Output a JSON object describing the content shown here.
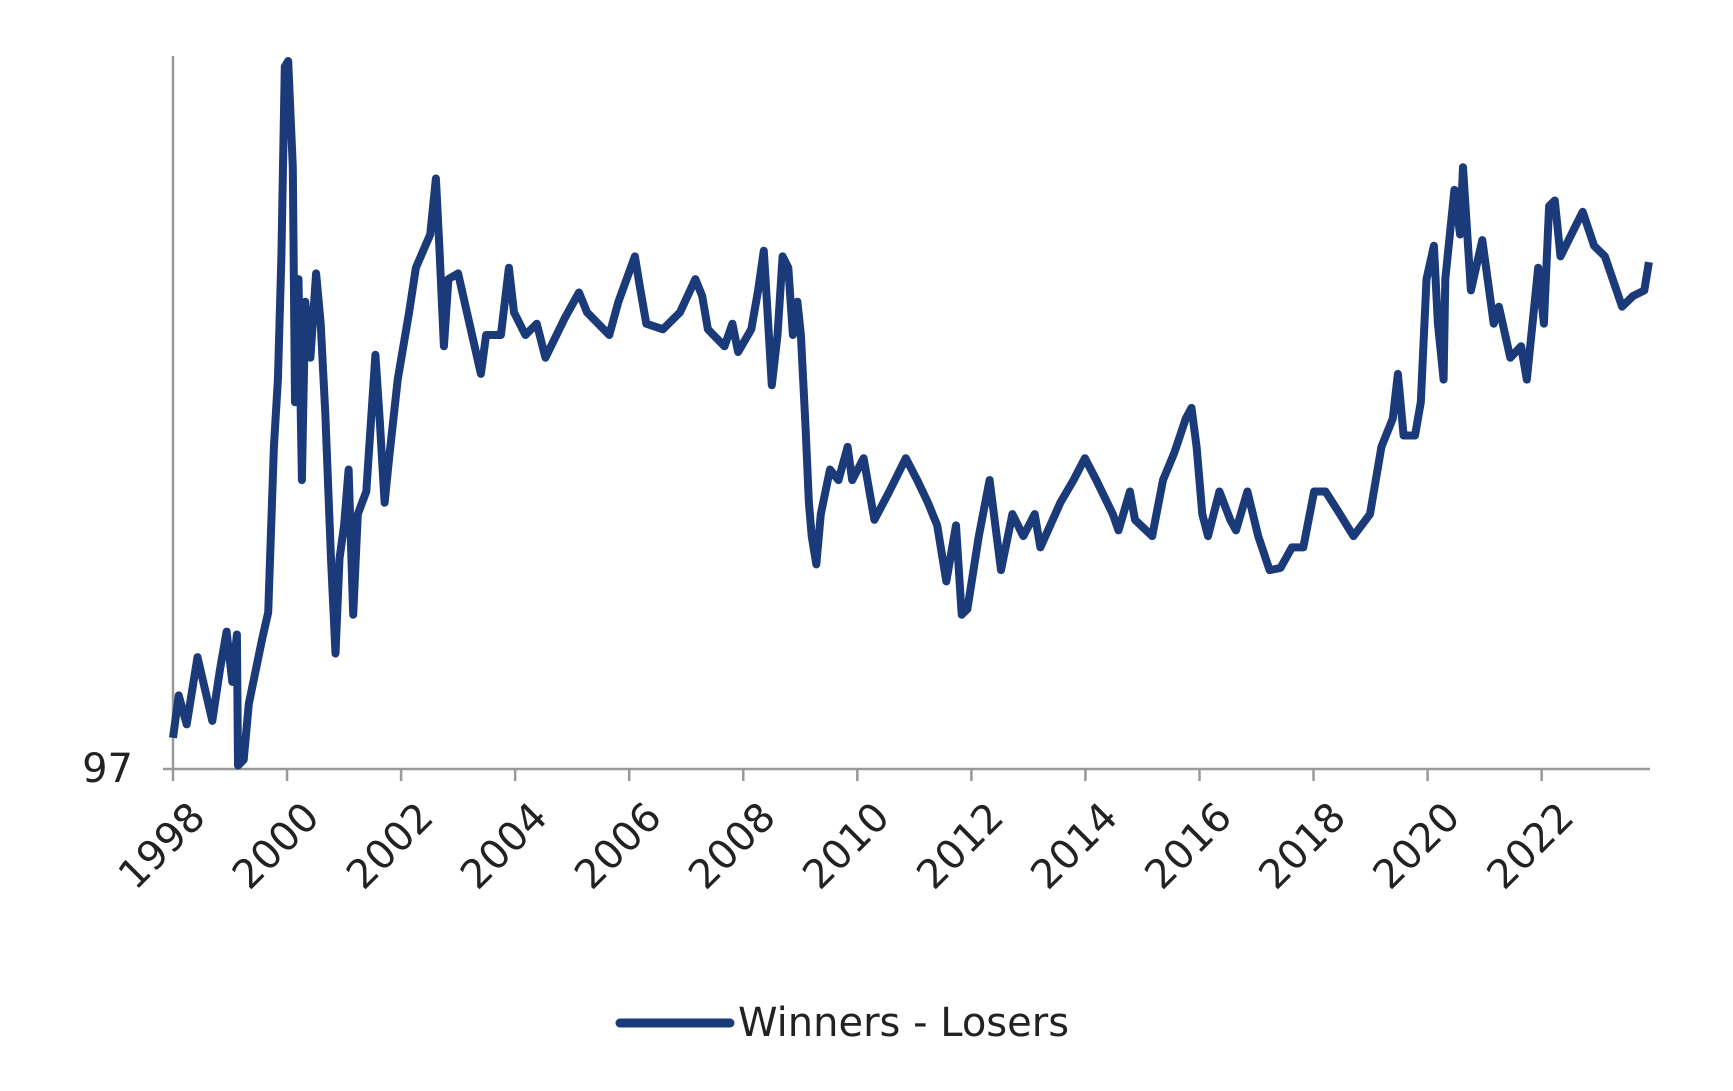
{
  "chart_data": {
    "type": "line",
    "xlim": [
      1998,
      2023.9
    ],
    "xticks": [
      1998,
      2000,
      2002,
      2004,
      2006,
      2008,
      2010,
      2012,
      2014,
      2016,
      2018,
      2020,
      2022
    ],
    "ylim": [
      97,
      107
    ],
    "yticks": [
      97
    ],
    "legend": "bottom",
    "series": [
      {
        "name": "Winners - Losers",
        "color": "#1b3a7a",
        "x": [
          1998.0,
          1998.1,
          1998.24,
          1998.43,
          1998.69,
          1998.82,
          1998.94,
          1999.04,
          1999.12,
          1999.14,
          1999.24,
          1999.33,
          1999.57,
          1999.67,
          1999.77,
          1999.84,
          1999.9,
          1999.96,
          2000.02,
          2000.1,
          2000.14,
          2000.2,
          2000.26,
          2000.32,
          2000.41,
          2000.51,
          2000.59,
          2000.67,
          2000.77,
          2000.85,
          2000.92,
          2001.0,
          2001.08,
          2001.16,
          2001.24,
          2001.39,
          2001.55,
          2001.63,
          2001.71,
          2001.79,
          2001.94,
          2002.14,
          2002.26,
          2002.51,
          2002.61,
          2002.67,
          2002.75,
          2002.83,
          2003.0,
          2003.2,
          2003.4,
          2003.49,
          2003.75,
          2003.89,
          2003.98,
          2004.18,
          2004.38,
          2004.53,
          2004.87,
          2005.12,
          2005.26,
          2005.65,
          2005.81,
          2006.1,
          2006.18,
          2006.3,
          2006.59,
          2006.89,
          2007.16,
          2007.28,
          2007.38,
          2007.67,
          2007.81,
          2007.91,
          2008.14,
          2008.26,
          2008.36,
          2008.42,
          2008.5,
          2008.6,
          2008.69,
          2008.79,
          2008.87,
          2008.95,
          2009.01,
          2009.09,
          2009.15,
          2009.2,
          2009.28,
          2009.36,
          2009.52,
          2009.67,
          2009.83,
          2009.91,
          2010.11,
          2010.3,
          2010.56,
          2010.85,
          2011.05,
          2011.24,
          2011.4,
          2011.56,
          2011.73,
          2011.83,
          2011.93,
          2012.13,
          2012.32,
          2012.52,
          2012.72,
          2012.91,
          2013.11,
          2013.21,
          2013.56,
          2013.79,
          2013.99,
          2014.19,
          2014.48,
          2014.58,
          2014.78,
          2014.87,
          2015.17,
          2015.36,
          2015.56,
          2015.76,
          2015.86,
          2015.95,
          2016.05,
          2016.15,
          2016.35,
          2016.54,
          2016.64,
          2016.84,
          2017.03,
          2017.23,
          2017.42,
          2017.62,
          2017.82,
          2018.01,
          2018.21,
          2018.4,
          2018.7,
          2018.99,
          2019.19,
          2019.39,
          2019.48,
          2019.58,
          2019.78,
          2019.88,
          2019.98,
          2020.11,
          2020.18,
          2020.28,
          2020.31,
          2020.47,
          2020.57,
          2020.62,
          2020.76,
          2020.96,
          2021.16,
          2021.25,
          2021.45,
          2021.64,
          2021.74,
          2021.94,
          2022.04,
          2022.13,
          2022.23,
          2022.33,
          2022.62,
          2022.72,
          2022.92,
          2023.11,
          2023.41,
          2023.6,
          2023.8,
          2023.88
        ],
        "values": [
          97.44,
          98.04,
          97.63,
          98.58,
          97.68,
          98.39,
          98.94,
          98.23,
          98.9,
          97.05,
          97.13,
          97.92,
          98.86,
          99.21,
          101.55,
          102.5,
          104.24,
          106.92,
          107.0,
          105.5,
          102.18,
          103.92,
          101.08,
          103.6,
          102.81,
          104.0,
          103.29,
          102.02,
          99.97,
          98.63,
          99.97,
          100.44,
          101.23,
          99.18,
          100.6,
          100.92,
          102.85,
          101.87,
          100.76,
          101.39,
          102.5,
          103.45,
          104.08,
          104.55,
          105.34,
          104.39,
          102.97,
          103.92,
          104.0,
          103.29,
          102.58,
          103.13,
          103.13,
          104.08,
          103.45,
          103.13,
          103.29,
          102.81,
          103.37,
          103.73,
          103.45,
          103.13,
          103.6,
          104.24,
          103.84,
          103.29,
          103.21,
          103.45,
          103.92,
          103.68,
          103.21,
          102.97,
          103.29,
          102.89,
          103.21,
          103.76,
          104.32,
          103.53,
          102.42,
          103.13,
          104.24,
          104.08,
          103.13,
          103.6,
          103.13,
          101.87,
          100.76,
          100.29,
          99.89,
          100.6,
          101.23,
          101.08,
          101.55,
          101.08,
          101.39,
          100.52,
          100.92,
          101.39,
          101.08,
          100.76,
          100.44,
          99.65,
          100.44,
          99.18,
          99.26,
          100.29,
          101.08,
          99.81,
          100.6,
          100.29,
          100.6,
          100.13,
          100.76,
          101.08,
          101.39,
          101.08,
          100.6,
          100.37,
          100.92,
          100.52,
          100.29,
          101.08,
          101.47,
          101.95,
          102.1,
          101.55,
          100.6,
          100.29,
          100.92,
          100.52,
          100.37,
          100.92,
          100.29,
          99.81,
          99.84,
          100.13,
          100.13,
          100.92,
          100.92,
          100.68,
          100.29,
          100.6,
          101.55,
          101.95,
          102.58,
          101.71,
          101.71,
          102.18,
          103.92,
          104.39,
          103.29,
          102.5,
          103.92,
          105.18,
          104.55,
          105.5,
          103.76,
          104.47,
          103.29,
          103.53,
          102.81,
          102.97,
          102.5,
          104.08,
          103.29,
          104.95,
          105.03,
          104.24,
          104.71,
          104.87,
          104.39,
          104.24,
          103.53,
          103.68,
          103.76,
          104.16
        ]
      }
    ]
  }
}
